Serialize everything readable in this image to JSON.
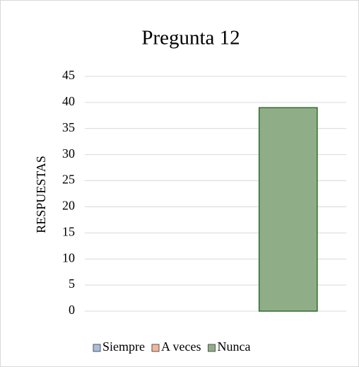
{
  "chart_data": {
    "type": "bar",
    "title": "Pregunta 12",
    "ylabel": "RESPUESTAS",
    "categories": [
      null
    ],
    "series": [
      {
        "name": "Siempre",
        "color": "#a7c0dc",
        "values": [
          0
        ]
      },
      {
        "name": "A veces",
        "color": "#f7b59a",
        "values": [
          0
        ]
      },
      {
        "name": "Nunca",
        "color": "#8fae87",
        "values": [
          39
        ]
      }
    ],
    "ylim": [
      0,
      45
    ],
    "yticks": [
      0,
      5,
      10,
      15,
      20,
      25,
      30,
      35,
      40,
      45
    ],
    "grid": true,
    "legend": "bottom"
  }
}
